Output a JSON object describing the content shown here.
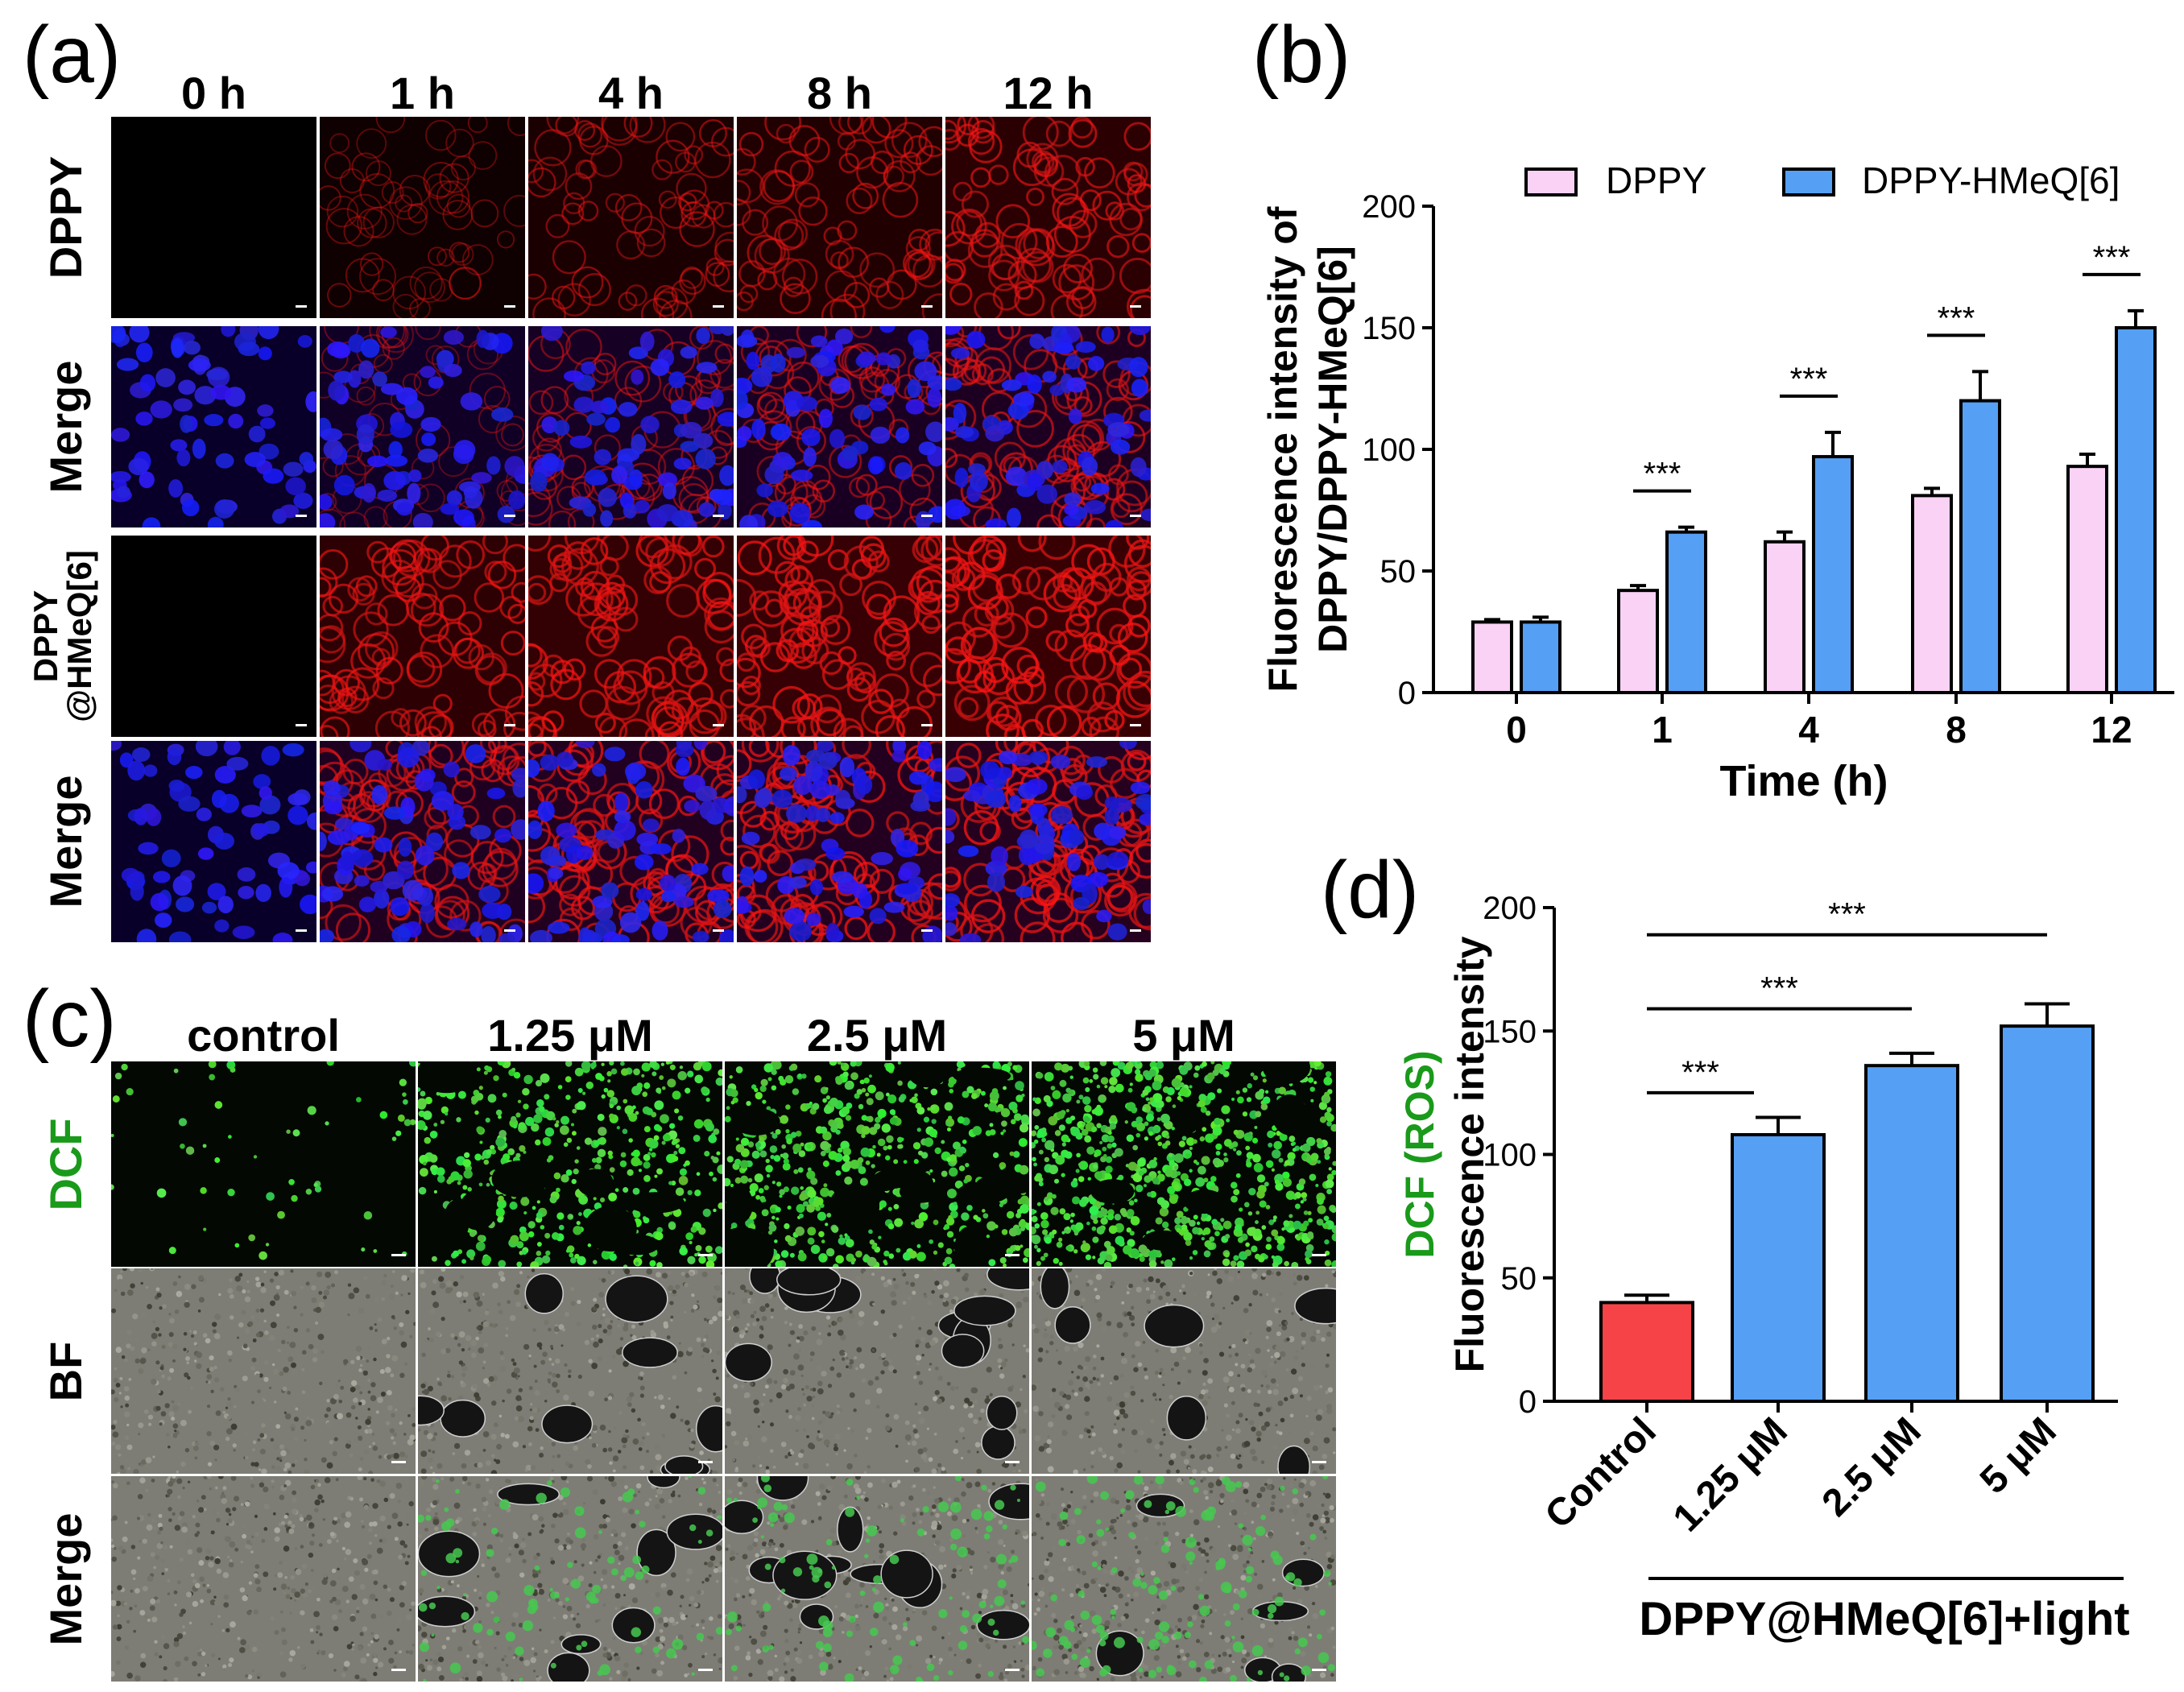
{
  "panels": {
    "a": {
      "letter": "(a)",
      "columns": [
        "0 h",
        "1 h",
        "4 h",
        "8 h",
        "12 h"
      ],
      "rows": [
        "DPPY",
        "Merge",
        "DPPY\n@HMeQ[6]",
        "Merge"
      ],
      "row3_line1": "DPPY",
      "row3_line2": "@HMeQ[6]"
    },
    "b": {
      "letter": "(b)"
    },
    "c": {
      "letter": "(c)",
      "columns": [
        "control",
        "1.25 μM",
        "2.5 μM",
        "5 μM"
      ],
      "rows": [
        "DCF",
        "BF",
        "Merge"
      ]
    },
    "d": {
      "letter": "(d)"
    }
  },
  "colors": {
    "pink": "#f9d2f5",
    "blue": "#559ff4",
    "red": "#f54347",
    "dcf_green": "#1a9a1a"
  },
  "chart_data": [
    {
      "id": "b",
      "type": "bar",
      "categories": [
        "0",
        "1",
        "4",
        "8",
        "12"
      ],
      "series": [
        {
          "name": "DPPY",
          "values": [
            29,
            42,
            62,
            81,
            93
          ],
          "errors": [
            1,
            2,
            4,
            3,
            5
          ],
          "color": "#f9d2f5"
        },
        {
          "name": "DPPY-HMeQ[6]",
          "values": [
            29,
            66,
            97,
            120,
            150
          ],
          "errors": [
            2,
            2,
            10,
            12,
            7
          ],
          "color": "#559ff4"
        }
      ],
      "significance": [
        {
          "category": "1",
          "label": "***"
        },
        {
          "category": "4",
          "label": "***"
        },
        {
          "category": "8",
          "label": "***"
        },
        {
          "category": "12",
          "label": "***"
        }
      ],
      "xlabel": "Time (h)",
      "ylabel_line1": "Fluorescence intensity of",
      "ylabel_line2": "DPPY/DPPY-HMeQ[6]",
      "ylim": [
        0,
        200
      ],
      "yticks": [
        "0",
        "50",
        "100",
        "150",
        "200"
      ],
      "legend_position": "top"
    },
    {
      "id": "d",
      "type": "bar",
      "categories": [
        "Control",
        "1.25 μM",
        "2.5 μM",
        "5 μM"
      ],
      "values": [
        40,
        108,
        136,
        152
      ],
      "errors": [
        3,
        7,
        5,
        9
      ],
      "colors": [
        "#f54347",
        "#559ff4",
        "#559ff4",
        "#559ff4"
      ],
      "significance": [
        {
          "from": "Control",
          "to": "1.25 μM",
          "label": "***"
        },
        {
          "from": "Control",
          "to": "2.5 μM",
          "label": "***"
        },
        {
          "from": "Control",
          "to": "5 μM",
          "label": "***"
        }
      ],
      "ylabel_colored": "DCF (ROS)",
      "ylabel": "Fluorescence intensity",
      "xgroup_label": "DPPY@HMeQ[6]+light",
      "ylim": [
        0,
        200
      ],
      "yticks": [
        "0",
        "50",
        "100",
        "150",
        "200"
      ]
    }
  ]
}
